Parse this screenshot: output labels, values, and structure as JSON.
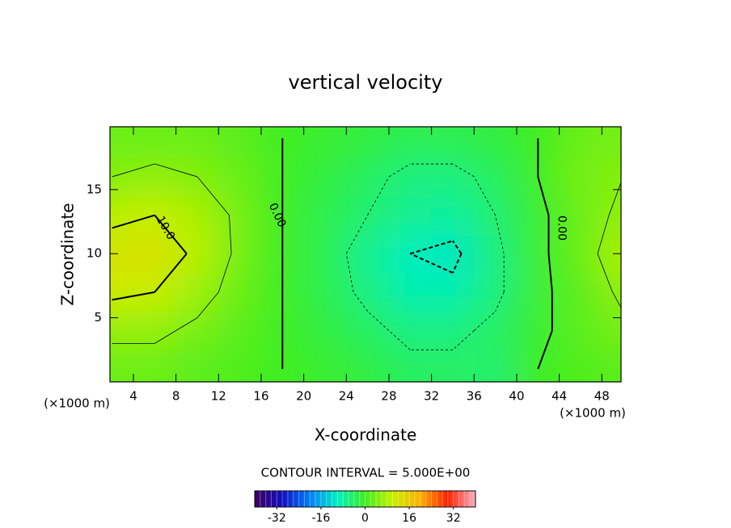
{
  "chart_data": {
    "type": "contour",
    "title": "vertical velocity",
    "x_label": "X-coordinate",
    "y_label": "Z-coordinate",
    "x_unit_label": "(×1000 m)",
    "y_unit_label": "(×1000 m)",
    "xlim": [
      1.8,
      49.8
    ],
    "ylim": [
      0,
      19.9
    ],
    "xticks": [
      4,
      8,
      12,
      16,
      20,
      24,
      28,
      32,
      36,
      40,
      44,
      48
    ],
    "yticks": [
      5,
      10,
      15
    ],
    "x": [
      2,
      6,
      10,
      14,
      18,
      22,
      26,
      30,
      34,
      38,
      42,
      46,
      50
    ],
    "y": [
      1,
      4,
      7,
      10,
      13,
      16,
      19
    ],
    "z": [
      [
        3,
        3,
        2,
        1,
        0,
        -1,
        -2,
        -4,
        -4,
        -5,
        0,
        1,
        2
      ],
      [
        6,
        6,
        4,
        2,
        0,
        -2,
        -4,
        -6,
        -6,
        -4,
        -1,
        2,
        4
      ],
      [
        11,
        10,
        7,
        3,
        0,
        -3,
        -6,
        -9,
        -9,
        -6,
        -1,
        2,
        6
      ],
      [
        12,
        13,
        9,
        4,
        0,
        -3,
        -7,
        -10,
        -11,
        -6,
        -1,
        3,
        8
      ],
      [
        9,
        10,
        8,
        4,
        0,
        -3,
        -5,
        -7,
        -8,
        -5,
        -1,
        3,
        6
      ],
      [
        5,
        6,
        5,
        3,
        0,
        -2,
        -4,
        -6,
        -6,
        -4,
        0,
        4,
        5
      ],
      [
        3,
        3,
        3,
        2,
        0,
        -1,
        -2,
        -3,
        -3,
        -2,
        0,
        3,
        4
      ]
    ],
    "contour_interval": 5,
    "contour_interval_label": "CONTOUR INTERVAL = 5.000E+00",
    "contour_labels": [
      {
        "text": "10.0",
        "x": 7,
        "y": 12,
        "angle": 60
      },
      {
        "text": "0.00",
        "x": 17.5,
        "y": 13,
        "angle": 65
      },
      {
        "text": "0.00",
        "x": 44.2,
        "y": 12,
        "angle": 90
      }
    ],
    "colorbar": {
      "lim": [
        -40,
        40
      ],
      "ticks": [
        -32,
        -16,
        0,
        16,
        32
      ]
    },
    "colormap": [
      "#400060",
      "#1010c0",
      "#0080ff",
      "#00f0c0",
      "#40ee20",
      "#c8f000",
      "#ffb000",
      "#ff2000",
      "#ffb0c0"
    ]
  }
}
